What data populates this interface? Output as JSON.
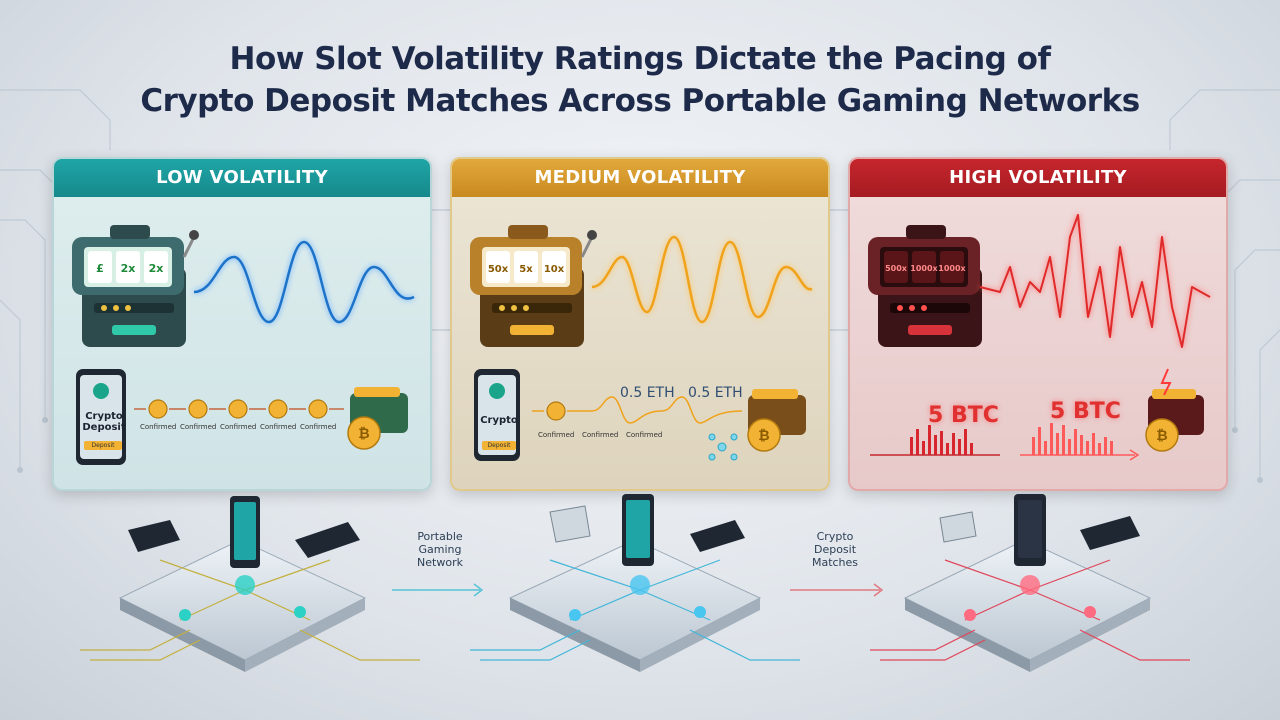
{
  "title_line1": "How Slot Volatility Ratings Dictate the Pacing of",
  "title_line2": "Crypto Deposit Matches Across Portable Gaming Networks",
  "panels": [
    {
      "heading": "LOW VOLATILITY",
      "phone_text": "Crypto Deposit",
      "phone_button": "Deposit",
      "step_labels": [
        "Confirmed",
        "Confirmed",
        "Confirmed",
        "Confirmed",
        "Confirmed"
      ],
      "reels": [
        "£",
        "2x",
        "2x"
      ],
      "color": "#1fa5a6"
    },
    {
      "heading": "MEDIUM VOLATILITY",
      "phone_text": "Crypto",
      "phone_button": "Deposit",
      "step_labels": [
        "Confirmed",
        "Confirmed",
        "Confirmed"
      ],
      "amounts": [
        "0.5 ETH",
        "0.5 ETH"
      ],
      "reels": [
        "50x",
        "5x",
        "10x"
      ],
      "color": "#e2a83b"
    },
    {
      "heading": "HIGH VOLATILITY",
      "amounts": [
        "5 BTC",
        "5 BTC"
      ],
      "reels": [
        "500x",
        "1000x",
        "1000x"
      ],
      "color": "#c6262d"
    }
  ],
  "network_labels": {
    "first": "Portable Gaming Network",
    "second": "Crypto Deposit Matches"
  }
}
